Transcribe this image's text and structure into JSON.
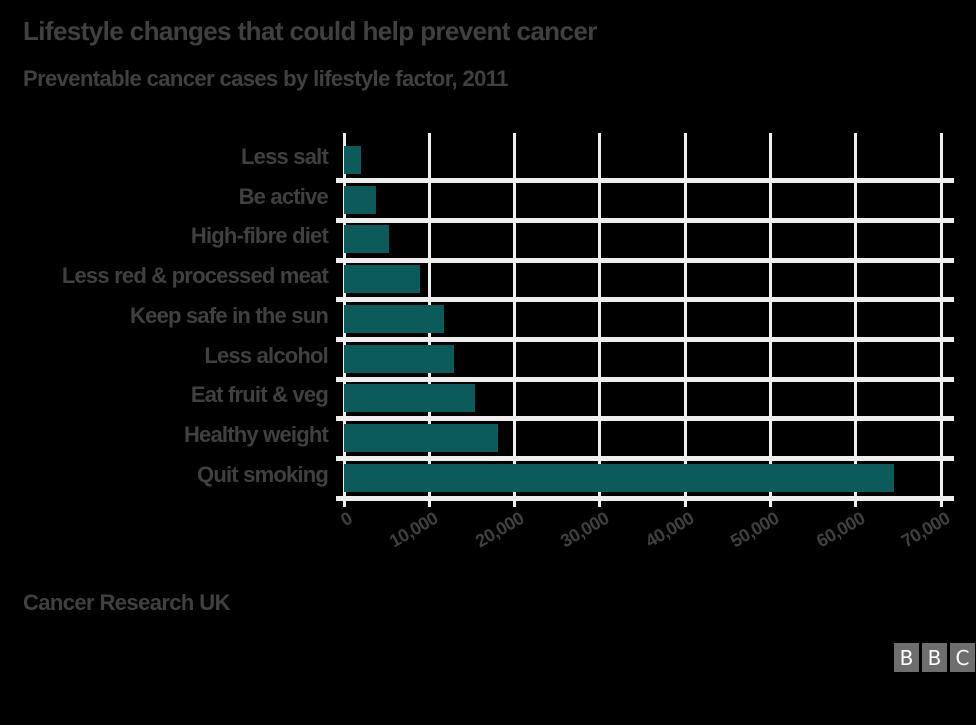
{
  "header": {
    "title": "Lifestyle changes that could help prevent cancer",
    "subtitle": "Preventable cancer cases by lifestyle factor, 2011"
  },
  "footer": {
    "source": "Cancer Research UK",
    "logo": [
      "B",
      "B",
      "C"
    ]
  },
  "colors": {
    "background": "#000000",
    "bar": "#0b5b5b",
    "grid": "#eeeeee",
    "text": "#404040",
    "logo_block": "#6e6e6e"
  },
  "chart_data": {
    "type": "bar",
    "orientation": "horizontal",
    "title": "Lifestyle changes that could help prevent cancer",
    "subtitle": "Preventable cancer cases by lifestyle factor, 2011",
    "source": "Cancer Research UK",
    "xlabel": "",
    "ylabel": "",
    "xlim": [
      0,
      70000
    ],
    "x_ticks": [
      0,
      10000,
      20000,
      30000,
      40000,
      50000,
      60000,
      70000
    ],
    "x_tick_labels": [
      "0",
      "10,000",
      "20,000",
      "30,000",
      "40,000",
      "50,000",
      "60,000",
      "70,000"
    ],
    "grid": true,
    "legend": null,
    "categories": [
      "Less salt",
      "Be active",
      "High-fibre diet",
      "Less red & processed meat",
      "Keep safe in the sun",
      "Less alcohol",
      "Eat fruit & veg",
      "Healthy weight",
      "Quit smoking"
    ],
    "values": [
      2000,
      3700,
      5300,
      8900,
      11700,
      12900,
      15300,
      18100,
      64500
    ]
  }
}
